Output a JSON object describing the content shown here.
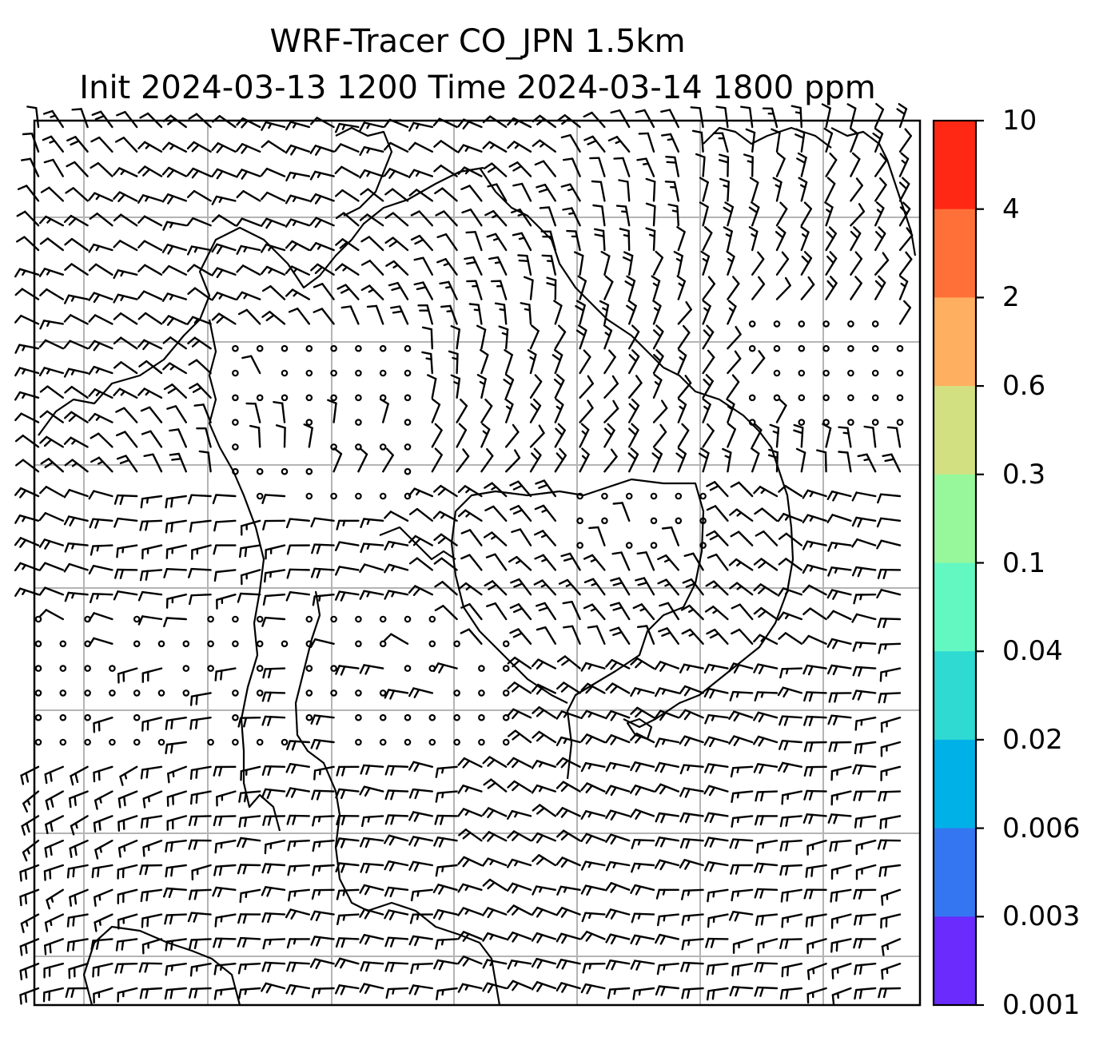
{
  "title": {
    "line1": "WRF-Tracer CO_JPN 1.5km",
    "line2": "Init 2024-03-13 1200 Time 2024-03-14 1800 ppm"
  },
  "colorbar": {
    "tick_labels": [
      "10",
      "4",
      "2",
      "0.6",
      "0.3",
      "0.1",
      "0.04",
      "0.02",
      "0.006",
      "0.003",
      "0.001"
    ],
    "band_colors": [
      "#ff2814",
      "#ff7038",
      "#ffaf60",
      "#d2e082",
      "#97f79b",
      "#63f8c2",
      "#2edad2",
      "#00b1e8",
      "#3476f2",
      "#6a2bfc"
    ]
  },
  "map": {
    "grid": true,
    "symbols": "wind barbs and calm-wind circles",
    "coastlines": true,
    "tracer_shading_visible": false
  }
}
